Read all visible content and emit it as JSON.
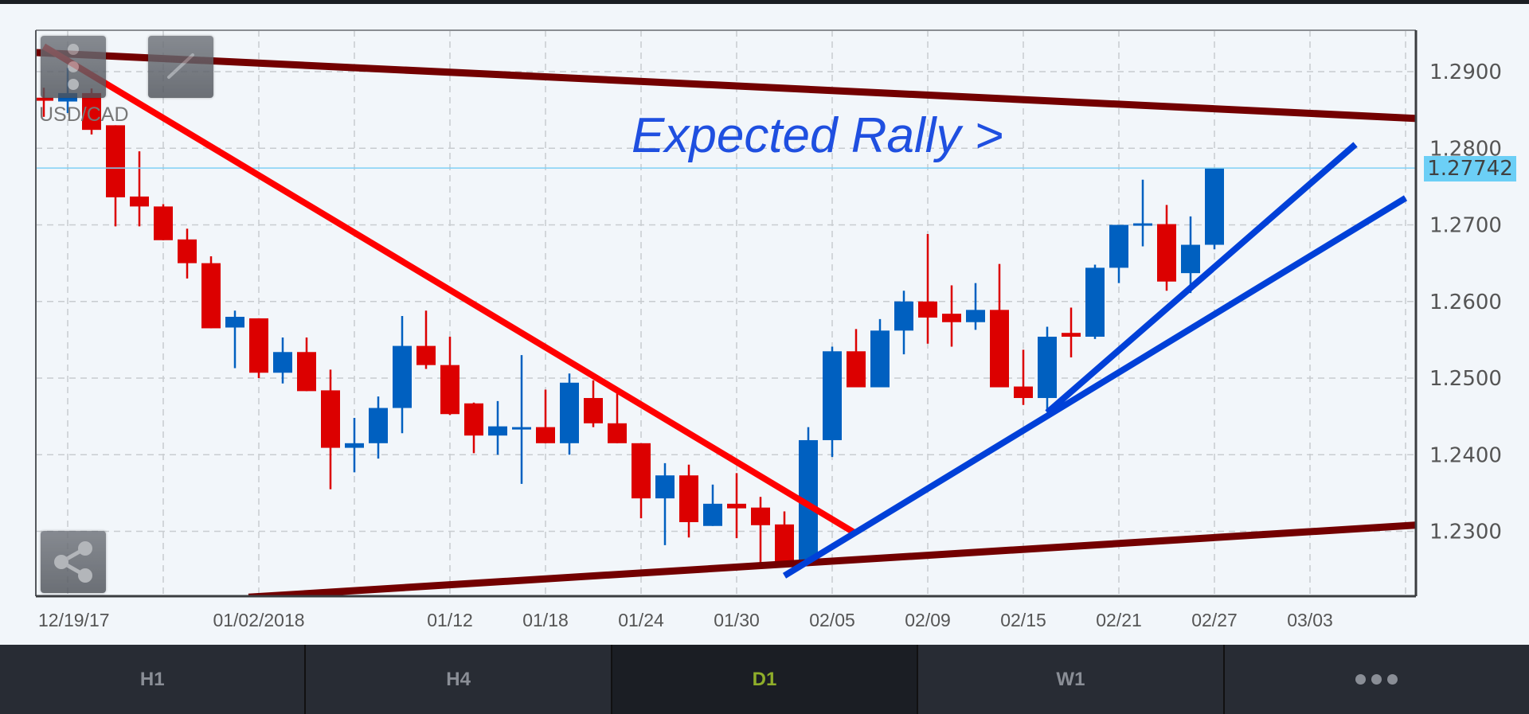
{
  "chart_data": {
    "type": "candlestick",
    "symbol": "USD/CAD",
    "annotation": "Expected Rally >",
    "current_price": "1.27742",
    "current_price_value": 1.27742,
    "ylim": [
      1.2215,
      1.2954
    ],
    "y_ticks": [
      "1.2900",
      "1.2800",
      "1.2700",
      "1.2600",
      "1.2500",
      "1.2400",
      "1.2300"
    ],
    "y_tick_values": [
      1.29,
      1.28,
      1.27,
      1.26,
      1.25,
      1.24,
      1.23
    ],
    "x_labels": [
      {
        "index": 1,
        "label": "12/19/17"
      },
      {
        "index": 9,
        "label": "01/02/2018"
      },
      {
        "index": 17,
        "label": "01/12"
      },
      {
        "index": 21,
        "label": "01/18"
      },
      {
        "index": 25,
        "label": "01/24"
      },
      {
        "index": 29,
        "label": "01/30"
      },
      {
        "index": 33,
        "label": "02/05"
      },
      {
        "index": 37,
        "label": "02/09"
      },
      {
        "index": 41,
        "label": "02/15"
      },
      {
        "index": 45,
        "label": "02/21"
      },
      {
        "index": 49,
        "label": "02/27"
      },
      {
        "index": 53,
        "label": "03/03"
      }
    ],
    "grid_indices": [
      1,
      5,
      9,
      13,
      17,
      21,
      25,
      29,
      33,
      37,
      41,
      45,
      49,
      53,
      57
    ],
    "xlim_index": [
      -0.33,
      57.4
    ],
    "candles": [
      [
        1.2866,
        1.2879,
        1.2841,
        1.2862
      ],
      [
        1.2861,
        1.2905,
        1.2846,
        1.2872
      ],
      [
        1.2872,
        1.2878,
        1.2818,
        1.2824
      ],
      [
        1.283,
        1.283,
        1.2698,
        1.2736
      ],
      [
        1.2737,
        1.2796,
        1.2698,
        1.2724
      ],
      [
        1.2724,
        1.2727,
        1.268,
        1.268
      ],
      [
        1.2681,
        1.2695,
        1.263,
        1.265
      ],
      [
        1.265,
        1.2659,
        1.2565,
        1.2565
      ],
      [
        1.2566,
        1.2588,
        1.2513,
        1.258
      ],
      [
        1.2578,
        1.2578,
        1.25,
        1.2507
      ],
      [
        1.2507,
        1.2553,
        1.2493,
        1.2534
      ],
      [
        1.2534,
        1.2553,
        1.2483,
        1.2483
      ],
      [
        1.2484,
        1.2511,
        1.2355,
        1.2409
      ],
      [
        1.2409,
        1.2448,
        1.2377,
        1.2415
      ],
      [
        1.2415,
        1.2476,
        1.2395,
        1.2461
      ],
      [
        1.2461,
        1.2581,
        1.2428,
        1.2542
      ],
      [
        1.2542,
        1.2588,
        1.2512,
        1.2517
      ],
      [
        1.2517,
        1.2554,
        1.2452,
        1.2453
      ],
      [
        1.2467,
        1.2468,
        1.2402,
        1.2425
      ],
      [
        1.2425,
        1.247,
        1.24,
        1.2437
      ],
      [
        1.2435,
        1.253,
        1.2362,
        1.2436
      ],
      [
        1.2436,
        1.2485,
        1.2415,
        1.2415
      ],
      [
        1.2415,
        1.2506,
        1.24,
        1.2494
      ],
      [
        1.2474,
        1.2497,
        1.2436,
        1.2441
      ],
      [
        1.2441,
        1.248,
        1.2415,
        1.2415
      ],
      [
        1.2415,
        1.2415,
        1.2317,
        1.2343
      ],
      [
        1.2343,
        1.2389,
        1.2282,
        1.2373
      ],
      [
        1.2373,
        1.2387,
        1.2292,
        1.2312
      ],
      [
        1.2307,
        1.2361,
        1.2307,
        1.2336
      ],
      [
        1.2336,
        1.2376,
        1.2291,
        1.233
      ],
      [
        1.2331,
        1.2345,
        1.2252,
        1.2308
      ],
      [
        1.2309,
        1.2326,
        1.2261,
        1.2261
      ],
      [
        1.2261,
        1.2436,
        1.2261,
        1.2419
      ],
      [
        1.2419,
        1.2541,
        1.2397,
        1.2535
      ],
      [
        1.2535,
        1.2564,
        1.2488,
        1.2488
      ],
      [
        1.2488,
        1.2577,
        1.2488,
        1.2562
      ],
      [
        1.2562,
        1.2614,
        1.2531,
        1.26
      ],
      [
        1.26,
        1.2688,
        1.2545,
        1.2579
      ],
      [
        1.2584,
        1.2621,
        1.2541,
        1.2573
      ],
      [
        1.2573,
        1.2624,
        1.2563,
        1.2589
      ],
      [
        1.2589,
        1.2649,
        1.2488,
        1.2488
      ],
      [
        1.2489,
        1.2537,
        1.2465,
        1.2474
      ],
      [
        1.2474,
        1.2567,
        1.2456,
        1.2554
      ],
      [
        1.2559,
        1.2592,
        1.2527,
        1.2554
      ],
      [
        1.2554,
        1.2648,
        1.2551,
        1.2644
      ],
      [
        1.2644,
        1.27,
        1.2624,
        1.27
      ],
      [
        1.27,
        1.2759,
        1.2672,
        1.2702
      ],
      [
        1.2701,
        1.2726,
        1.2614,
        1.2626
      ],
      [
        1.2637,
        1.2711,
        1.2611,
        1.2674
      ],
      [
        1.2674,
        1.27742,
        1.2668,
        1.27742
      ]
    ],
    "candle_fields": [
      "open",
      "high",
      "low",
      "close"
    ],
    "trendlines": [
      {
        "name": "upper-channel-line",
        "color": "#730000",
        "from": [
          -0.33,
          1.2925
        ],
        "to": [
          57.4,
          1.2839
        ]
      },
      {
        "name": "lower-channel-line",
        "color": "#730000",
        "from": [
          8.57,
          1.2214
        ],
        "to": [
          57.4,
          1.2308
        ]
      },
      {
        "name": "downtrend-line",
        "color": "#ff0000",
        "from": [
          0,
          1.2933
        ],
        "to": [
          34,
          1.2297
        ]
      },
      {
        "name": "uptrend-line-shallow",
        "color": "#0040d8",
        "from": [
          31,
          1.2242
        ],
        "to": [
          57,
          1.2735
        ]
      },
      {
        "name": "uptrend-line-steep",
        "color": "#0040d8",
        "from": [
          42,
          1.2455
        ],
        "to": [
          54.9,
          1.2805
        ]
      }
    ],
    "colors": {
      "up": "#0060c0",
      "down": "#dc0000",
      "price_line": "#7fd0f5",
      "grid": "#c8ccd0"
    }
  },
  "tabs": [
    {
      "label": "H1",
      "active": false
    },
    {
      "label": "H4",
      "active": false
    },
    {
      "label": "D1",
      "active": true
    },
    {
      "label": "W1",
      "active": false
    }
  ],
  "more_icon": "more-horizontal-icon"
}
